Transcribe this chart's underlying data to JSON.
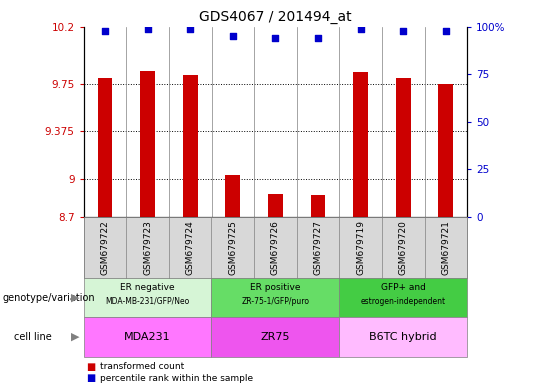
{
  "title": "GDS4067 / 201494_at",
  "samples": [
    "GSM679722",
    "GSM679723",
    "GSM679724",
    "GSM679725",
    "GSM679726",
    "GSM679727",
    "GSM679719",
    "GSM679720",
    "GSM679721"
  ],
  "bar_values": [
    9.8,
    9.85,
    9.82,
    9.03,
    8.88,
    8.87,
    9.84,
    9.8,
    9.75
  ],
  "percentile_values": [
    98,
    99,
    99,
    95,
    94,
    94,
    99,
    98,
    98
  ],
  "ylim": [
    8.7,
    10.2
  ],
  "y2lim": [
    0,
    100
  ],
  "yticks": [
    8.7,
    9.0,
    9.375,
    9.75,
    10.2
  ],
  "ytick_labels": [
    "8.7",
    "9",
    "9.375",
    "9.75",
    "10.2"
  ],
  "y2ticks": [
    0,
    25,
    50,
    75,
    100
  ],
  "y2tick_labels": [
    "0",
    "25",
    "50",
    "75",
    "100%"
  ],
  "bar_color": "#cc0000",
  "dot_color": "#0000cc",
  "groups": [
    {
      "label": "ER negative",
      "sublabel": "MDA-MB-231/GFP/Neo",
      "start": 0,
      "end": 3,
      "color": "#d6f5d6"
    },
    {
      "label": "ER positive",
      "sublabel": "ZR-75-1/GFP/puro",
      "start": 3,
      "end": 6,
      "color": "#66dd66"
    },
    {
      "label": "GFP+ and",
      "sublabel": "estrogen-independent",
      "start": 6,
      "end": 9,
      "color": "#44cc44"
    }
  ],
  "cell_lines": [
    {
      "label": "MDA231",
      "start": 0,
      "end": 3,
      "color": "#ff77ff"
    },
    {
      "label": "ZR75",
      "start": 3,
      "end": 6,
      "color": "#ee55ee"
    },
    {
      "label": "B6TC hybrid",
      "start": 6,
      "end": 9,
      "color": "#ffbbff"
    }
  ],
  "sample_bg_color": "#d8d8d8",
  "genotype_label": "genotype/variation",
  "cell_line_label": "cell line",
  "legend_bar": "transformed count",
  "legend_dot": "percentile rank within the sample"
}
